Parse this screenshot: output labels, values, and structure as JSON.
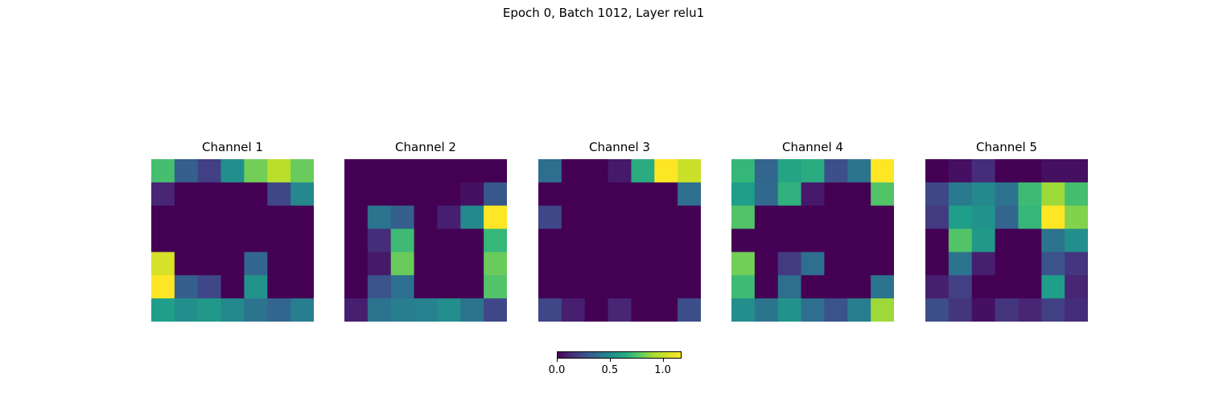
{
  "suptitle": "Epoch 0, Batch 1012, Layer relu1",
  "chart_data": [
    {
      "type": "heatmap",
      "title": "Channel 1",
      "colormap": "viridis",
      "vmin": 0,
      "vmax": 1.17,
      "values": [
        [
          0.82,
          0.35,
          0.22,
          0.58,
          0.92,
          1.05,
          0.9
        ],
        [
          0.12,
          0.0,
          0.0,
          0.0,
          0.0,
          0.25,
          0.55
        ],
        [
          0.0,
          0.0,
          0.0,
          0.0,
          0.0,
          0.0,
          0.0
        ],
        [
          0.0,
          0.0,
          0.0,
          0.0,
          0.0,
          0.0,
          0.0
        ],
        [
          1.1,
          0.0,
          0.0,
          0.0,
          0.38,
          0.0,
          0.0
        ],
        [
          1.17,
          0.35,
          0.25,
          0.0,
          0.6,
          0.0,
          0.0
        ],
        [
          0.65,
          0.58,
          0.62,
          0.55,
          0.45,
          0.38,
          0.5
        ]
      ]
    },
    {
      "type": "heatmap",
      "title": "Channel 2",
      "colormap": "viridis",
      "vmin": 0,
      "vmax": 1.17,
      "values": [
        [
          0.0,
          0.0,
          0.0,
          0.0,
          0.0,
          0.0,
          0.0
        ],
        [
          0.0,
          0.0,
          0.0,
          0.0,
          0.0,
          0.05,
          0.32
        ],
        [
          0.0,
          0.45,
          0.35,
          0.0,
          0.1,
          0.55,
          1.17
        ],
        [
          0.0,
          0.15,
          0.8,
          0.0,
          0.0,
          0.0,
          0.78
        ],
        [
          0.0,
          0.08,
          0.9,
          0.0,
          0.0,
          0.0,
          0.9
        ],
        [
          0.0,
          0.3,
          0.42,
          0.0,
          0.0,
          0.0,
          0.85
        ],
        [
          0.1,
          0.45,
          0.5,
          0.52,
          0.58,
          0.45,
          0.25
        ]
      ]
    },
    {
      "type": "heatmap",
      "title": "Channel 3",
      "colormap": "viridis",
      "vmin": 0,
      "vmax": 1.17,
      "values": [
        [
          0.42,
          0.0,
          0.0,
          0.08,
          0.72,
          1.17,
          1.08
        ],
        [
          0.0,
          0.0,
          0.0,
          0.0,
          0.0,
          0.0,
          0.42
        ],
        [
          0.25,
          0.0,
          0.0,
          0.0,
          0.0,
          0.0,
          0.0
        ],
        [
          0.0,
          0.0,
          0.0,
          0.0,
          0.0,
          0.0,
          0.0
        ],
        [
          0.0,
          0.0,
          0.0,
          0.0,
          0.0,
          0.0,
          0.0
        ],
        [
          0.0,
          0.0,
          0.0,
          0.0,
          0.0,
          0.0,
          0.0
        ],
        [
          0.25,
          0.1,
          0.0,
          0.12,
          0.0,
          0.0,
          0.28
        ]
      ]
    },
    {
      "type": "heatmap",
      "title": "Channel 4",
      "colormap": "viridis",
      "vmin": 0,
      "vmax": 1.17,
      "values": [
        [
          0.78,
          0.38,
          0.68,
          0.72,
          0.28,
          0.45,
          1.17
        ],
        [
          0.65,
          0.4,
          0.75,
          0.08,
          0.0,
          0.0,
          0.85
        ],
        [
          0.85,
          0.0,
          0.0,
          0.0,
          0.0,
          0.0,
          0.0
        ],
        [
          0.0,
          0.0,
          0.0,
          0.0,
          0.0,
          0.0,
          0.0
        ],
        [
          0.92,
          0.0,
          0.2,
          0.42,
          0.0,
          0.0,
          0.0
        ],
        [
          0.8,
          0.0,
          0.42,
          0.0,
          0.0,
          0.0,
          0.45
        ],
        [
          0.58,
          0.45,
          0.6,
          0.42,
          0.3,
          0.5,
          1.0
        ]
      ]
    },
    {
      "type": "heatmap",
      "title": "Channel 5",
      "colormap": "viridis",
      "vmin": 0,
      "vmax": 1.17,
      "values": [
        [
          0.0,
          0.05,
          0.15,
          0.0,
          0.0,
          0.05,
          0.05
        ],
        [
          0.25,
          0.48,
          0.55,
          0.45,
          0.8,
          1.0,
          0.82
        ],
        [
          0.2,
          0.65,
          0.6,
          0.38,
          0.78,
          1.17,
          0.95
        ],
        [
          0.0,
          0.85,
          0.62,
          0.0,
          0.0,
          0.45,
          0.58
        ],
        [
          0.0,
          0.45,
          0.1,
          0.0,
          0.0,
          0.3,
          0.18
        ],
        [
          0.1,
          0.22,
          0.0,
          0.0,
          0.0,
          0.65,
          0.12
        ],
        [
          0.28,
          0.18,
          0.05,
          0.18,
          0.12,
          0.22,
          0.15
        ]
      ]
    }
  ],
  "colorbar": {
    "ticks": [
      "0.0",
      "0.5",
      "1.0"
    ],
    "tick_values": [
      0.0,
      0.5,
      1.0
    ],
    "vmin": 0,
    "vmax": 1.17
  }
}
